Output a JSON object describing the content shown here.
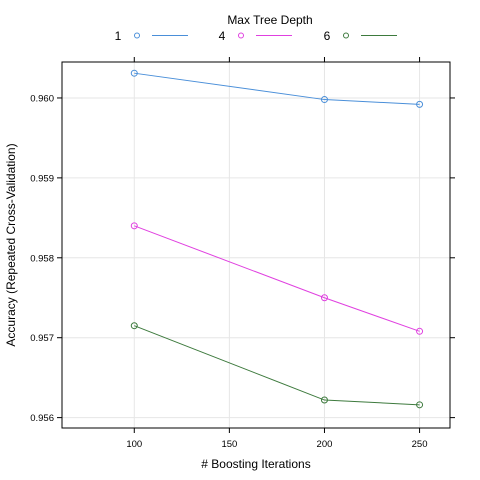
{
  "chart_data": {
    "type": "line",
    "xlabel": "# Boosting Iterations",
    "ylabel": "Accuracy (Repeated Cross-Validation)",
    "legend_title": "Max Tree Depth",
    "legend_placement": "top",
    "grid": true,
    "xlim": [
      62,
      266
    ],
    "ylim": [
      0.95587,
      0.96045
    ],
    "x_ticks": [
      100,
      150,
      200,
      250
    ],
    "x_tick_labels": [
      "100",
      "150",
      "200",
      "250"
    ],
    "y_ticks": [
      0.956,
      0.957,
      0.958,
      0.959,
      0.96
    ],
    "y_tick_labels": [
      "0.956",
      "0.957",
      "0.958",
      "0.959",
      "0.960"
    ],
    "x": [
      100,
      200,
      250
    ],
    "series": [
      {
        "name": "1",
        "color": "#4a8fd9",
        "marker": "open-circle",
        "values": [
          0.96031,
          0.95998,
          0.95992
        ]
      },
      {
        "name": "4",
        "color": "#e040e0",
        "marker": "open-circle",
        "values": [
          0.9584,
          0.9575,
          0.95708
        ]
      },
      {
        "name": "6",
        "color": "#3d7a3d",
        "marker": "open-circle",
        "values": [
          0.95715,
          0.95622,
          0.95616
        ]
      }
    ]
  }
}
